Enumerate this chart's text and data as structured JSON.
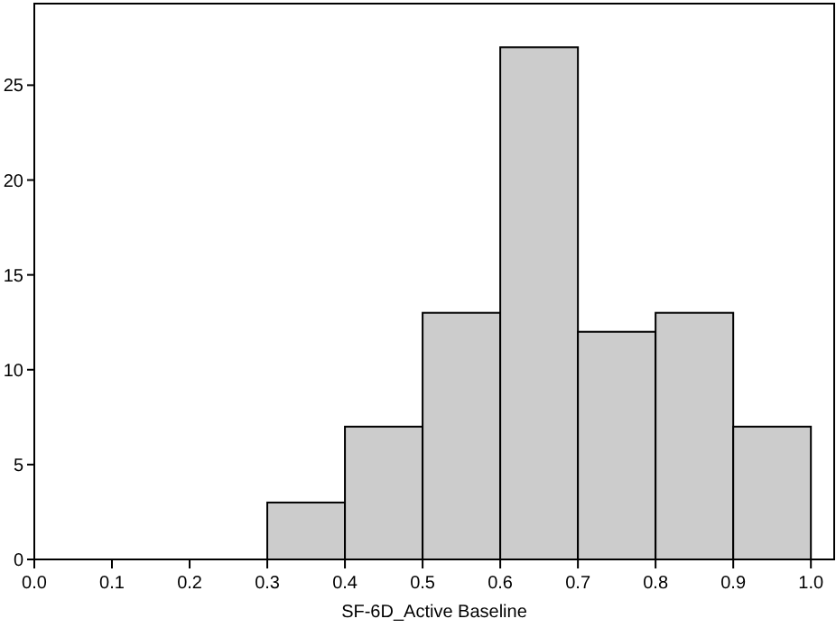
{
  "chart_data": {
    "type": "histogram",
    "xlabel": "SF-6D_Active Baseline",
    "bins": [
      0,
      0.1,
      0.2,
      0.3,
      0.4,
      0.5,
      0.6,
      0.7,
      0.8,
      0.9,
      1.0
    ],
    "values": [
      0,
      0,
      0,
      3,
      7,
      13,
      27,
      12,
      13,
      7
    ],
    "color": "#cccccc",
    "xlim": [
      0,
      1.03
    ],
    "ylim": [
      0,
      29.3
    ],
    "xticks": [
      {
        "value": 0,
        "label": "0.0"
      },
      0.1,
      0.2,
      0.3,
      0.4,
      0.5,
      0.6,
      0.7,
      0.8,
      0.9,
      {
        "value": 1,
        "label": "1.0"
      }
    ],
    "yticks": [
      0,
      5,
      10,
      15,
      20,
      25
    ],
    "grid": false
  }
}
